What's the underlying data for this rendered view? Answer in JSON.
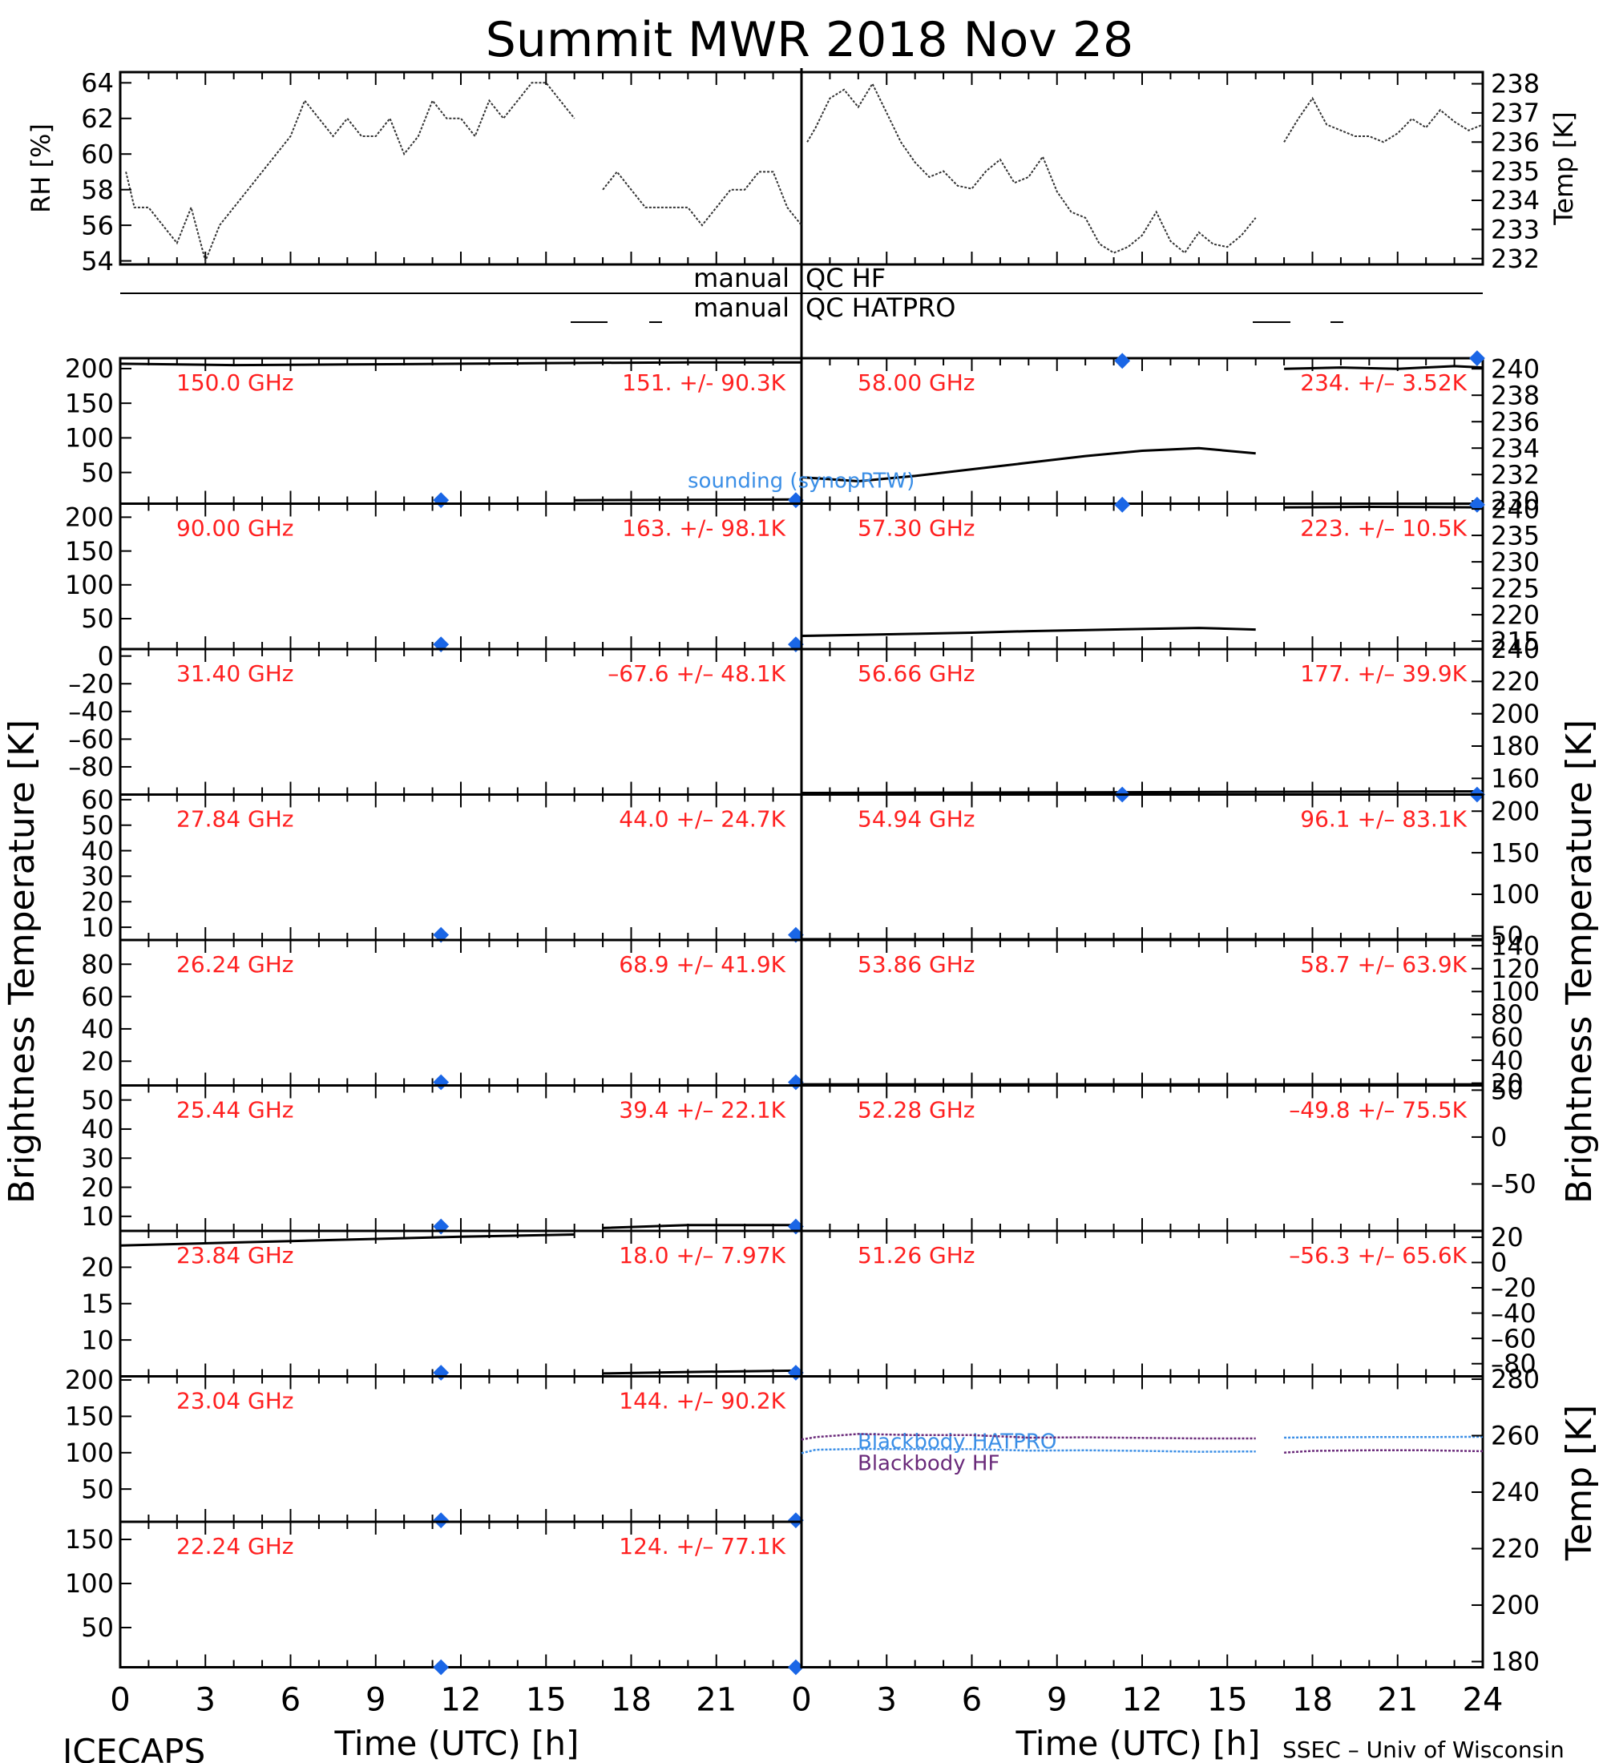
{
  "title": "Summit MWR 2018 Nov 28",
  "footer": {
    "left": "ICECAPS",
    "right": "SSEC – Univ of Wisconsin",
    "time_label_left": "Time (UTC) [h]",
    "time_label_right": "Time (UTC) [h]"
  },
  "axis_titles": {
    "rh": "RH [%]",
    "temp_top": "Temp [K]",
    "bt_left": "Brightness Temperature [K]",
    "bt_right": "Brightness Temperature [K]",
    "temp_bottom": "Temp [K]"
  },
  "qc": {
    "left_hf": "manual",
    "right_hf": "QC HF",
    "left_hat": "manual",
    "right_hat": "QC HATPRO"
  },
  "colors": {
    "axis": "#000000",
    "annotation": "#ff2020",
    "marker": "#1a66e6",
    "blackbody_hatpro": "#3a8ee6",
    "blackbody_hf": "#6a2a7a",
    "sounding": "#3a8ee6"
  },
  "chart_data": [
    {
      "type": "line",
      "panel": "met-rh",
      "ylabel": "RH [%]",
      "xlim": [
        0,
        24
      ],
      "ylim": [
        53.8,
        64.6
      ],
      "yticks": [
        54,
        56,
        58,
        60,
        62,
        64
      ],
      "x": [
        0.2,
        0.5,
        1,
        1.5,
        2,
        2.5,
        3,
        3.5,
        4,
        4.5,
        5,
        5.5,
        6,
        6.5,
        7,
        7.5,
        8,
        8.5,
        9,
        9.5,
        10,
        10.5,
        11,
        11.5,
        12,
        12.5,
        13,
        13.5,
        14,
        14.5,
        15,
        15.5,
        16
      ],
      "y": [
        59,
        57,
        57,
        56,
        55,
        57,
        54,
        56,
        57,
        58,
        59,
        60,
        61,
        63,
        62,
        61,
        62,
        61,
        61,
        62,
        60,
        61,
        63,
        62,
        62,
        61,
        63,
        62,
        63,
        64,
        64,
        63,
        62
      ],
      "x2": [
        17,
        17.5,
        18,
        18.5,
        19,
        19.5,
        20,
        20.5,
        21,
        21.5,
        22,
        22.5,
        23,
        23.5,
        24
      ],
      "y2": [
        58,
        59,
        58,
        57,
        57,
        57,
        57,
        56,
        57,
        58,
        58,
        59,
        59,
        57,
        56
      ]
    },
    {
      "type": "line",
      "panel": "met-temp",
      "ylabel": "Temp [K]",
      "xlim": [
        0,
        24
      ],
      "ylim": [
        231.8,
        238.4
      ],
      "yticks": [
        232,
        233,
        234,
        235,
        236,
        237,
        238
      ],
      "x": [
        0.2,
        0.5,
        1,
        1.5,
        2,
        2.5,
        3,
        3.5,
        4,
        4.5,
        5,
        5.5,
        6,
        6.5,
        7,
        7.5,
        8,
        8.5,
        9,
        9.5,
        10,
        10.5,
        11,
        11.5,
        12,
        12.5,
        13,
        13.5,
        14,
        14.5,
        15,
        15.5,
        16
      ],
      "y": [
        236,
        236.5,
        237.5,
        237.8,
        237.2,
        238,
        237,
        236,
        235.3,
        234.8,
        235,
        234.5,
        234.4,
        235,
        235.4,
        234.6,
        234.8,
        235.5,
        234.3,
        233.6,
        233.4,
        232.5,
        232.2,
        232.4,
        232.8,
        233.6,
        232.6,
        232.2,
        232.9,
        232.5,
        232.4,
        232.8,
        233.4
      ],
      "x2": [
        17,
        17.5,
        18,
        18.5,
        19,
        19.5,
        20,
        20.5,
        21,
        21.5,
        22,
        22.5,
        23,
        23.5,
        24
      ],
      "y2": [
        236,
        236.8,
        237.5,
        236.6,
        236.4,
        236.2,
        236.2,
        236,
        236.3,
        236.8,
        236.5,
        237.1,
        236.7,
        236.4,
        236.6
      ]
    },
    {
      "type": "scatter",
      "panel": "left",
      "channel": "150.0 GHz",
      "stat": "151. +/-  90.3K",
      "ylim": [
        5,
        215
      ],
      "yticks": [
        50,
        100,
        150,
        200
      ],
      "tick_labels": [
        "50",
        "100",
        "150",
        "200"
      ],
      "x": [
        0,
        4,
        8,
        12,
        15,
        20,
        24
      ],
      "y": [
        207,
        205,
        206,
        207,
        208,
        209,
        209
      ],
      "x2": [
        16,
        24
      ],
      "y2": [
        10,
        11
      ],
      "markers": [
        {
          "x": 11.3,
          "y": 10
        },
        {
          "x": 23.8,
          "y": 10
        }
      ]
    },
    {
      "type": "scatter",
      "panel": "left",
      "channel": "90.00 GHz",
      "stat": "163. +/-  98.1K",
      "ylim": [
        5,
        220
      ],
      "yticks": [
        0,
        50,
        100,
        150,
        200
      ],
      "tick_labels": [
        "0",
        "50",
        "100",
        "150",
        "200"
      ],
      "x": [],
      "y": [],
      "markers": [
        {
          "x": 11.3,
          "y": 12
        },
        {
          "x": 23.8,
          "y": 12
        }
      ]
    },
    {
      "type": "scatter",
      "panel": "left",
      "channel": "31.40 GHz",
      "stat": "–67.6 +/– 48.1K",
      "ylim": [
        -100,
        5
      ],
      "yticks": [
        -80,
        -60,
        -40,
        -20,
        0
      ],
      "tick_labels": [
        "–80",
        "–60",
        "–40",
        "–20",
        "0"
      ],
      "x": [],
      "y": [],
      "markers": []
    },
    {
      "type": "scatter",
      "panel": "left",
      "channel": "27.84 GHz",
      "stat": "44.0 +/– 24.7K",
      "ylim": [
        5,
        62
      ],
      "yticks": [
        10,
        20,
        30,
        40,
        50,
        60
      ],
      "tick_labels": [
        "10",
        "20",
        "30",
        "40",
        "50",
        "60"
      ],
      "x": [],
      "y": [],
      "markers": [
        {
          "x": 11.3,
          "y": 7
        },
        {
          "x": 23.8,
          "y": 7
        }
      ]
    },
    {
      "type": "scatter",
      "panel": "left",
      "channel": "26.24 GHz",
      "stat": "68.9 +/– 41.9K",
      "ylim": [
        5,
        95
      ],
      "yticks": [
        20,
        40,
        60,
        80
      ],
      "tick_labels": [
        "20",
        "40",
        "60",
        "80"
      ],
      "x": [],
      "y": [],
      "markers": [
        {
          "x": 11.3,
          "y": 7
        },
        {
          "x": 23.8,
          "y": 7
        }
      ]
    },
    {
      "type": "scatter",
      "panel": "left",
      "channel": "25.44 GHz",
      "stat": "39.4 +/– 22.1K",
      "ylim": [
        5,
        55
      ],
      "yticks": [
        10,
        20,
        30,
        40,
        50
      ],
      "tick_labels": [
        "10",
        "20",
        "30",
        "40",
        "50"
      ],
      "x": [
        17,
        20,
        24
      ],
      "y": [
        6,
        7,
        7
      ],
      "markers": [
        {
          "x": 11.3,
          "y": 6.5
        },
        {
          "x": 23.8,
          "y": 6.5
        }
      ]
    },
    {
      "type": "scatter",
      "panel": "left",
      "channel": "23.84 GHz",
      "stat": "18.0 +/– 7.97K",
      "ylim": [
        5,
        25
      ],
      "yticks": [
        10,
        15,
        20
      ],
      "tick_labels": [
        "10",
        "15",
        "20"
      ],
      "x": [
        0,
        4,
        8,
        12,
        16
      ],
      "y": [
        23,
        23.4,
        23.8,
        24.2,
        24.5
      ],
      "x2": [
        17,
        20,
        24
      ],
      "y2": [
        5.4,
        5.6,
        5.8
      ],
      "markers": [
        {
          "x": 11.3,
          "y": 5.5
        },
        {
          "x": 23.8,
          "y": 5.5
        }
      ]
    },
    {
      "type": "scatter",
      "panel": "left",
      "channel": "23.04 GHz",
      "stat": "144. +/– 90.2K",
      "ylim": [
        5,
        205
      ],
      "yticks": [
        50,
        100,
        150,
        200
      ],
      "tick_labels": [
        "50",
        "100",
        "150",
        "200"
      ],
      "x": [],
      "y": [],
      "markers": [
        {
          "x": 11.3,
          "y": 7
        },
        {
          "x": 23.8,
          "y": 7
        }
      ]
    },
    {
      "type": "scatter",
      "panel": "left",
      "channel": "22.24 GHz",
      "stat": "124. +/– 77.1K",
      "ylim": [
        5,
        170
      ],
      "yticks": [
        50,
        100,
        150
      ],
      "tick_labels": [
        "50",
        "100",
        "150"
      ],
      "x": [],
      "y": [],
      "markers": [
        {
          "x": 11.3,
          "y": 5
        },
        {
          "x": 23.8,
          "y": 5
        }
      ]
    },
    {
      "type": "scatter",
      "panel": "right",
      "channel": "58.00 GHz",
      "stat": "234. +/– 3.52K",
      "ylim": [
        229.8,
        240.8
      ],
      "yticks": [
        230,
        232,
        234,
        236,
        238,
        240
      ],
      "tick_labels": [
        "230",
        "232",
        "234",
        "236",
        "238",
        "240"
      ],
      "x": [
        0,
        2,
        4,
        6,
        8,
        10,
        12,
        14,
        16
      ],
      "y": [
        231.8,
        231.5,
        231.9,
        232.4,
        232.9,
        233.4,
        233.8,
        234,
        233.6
      ],
      "x2": [
        17,
        19,
        21,
        23,
        24
      ],
      "y2": [
        240,
        240.1,
        240,
        240.2,
        240.1
      ],
      "annotation": "sounding (synopRTW)",
      "markers": [
        {
          "x": 11.3,
          "y": 240.6
        },
        {
          "x": 23.8,
          "y": 240.8
        }
      ]
    },
    {
      "type": "scatter",
      "panel": "right",
      "channel": "57.30 GHz",
      "stat": "223. +/– 10.5K",
      "ylim": [
        213.5,
        241
      ],
      "yticks": [
        215,
        220,
        225,
        230,
        235,
        240
      ],
      "tick_labels": [
        "215",
        "220",
        "225",
        "230",
        "235",
        "240"
      ],
      "x": [
        0,
        2,
        4,
        6,
        8,
        10,
        12,
        14,
        16
      ],
      "y": [
        216,
        216.2,
        216.4,
        216.6,
        216.9,
        217.1,
        217.3,
        217.5,
        217.2
      ],
      "x2": [
        17,
        20,
        24
      ],
      "y2": [
        240.3,
        240.4,
        240.3
      ],
      "markers": [
        {
          "x": 11.3,
          "y": 240.8
        },
        {
          "x": 23.8,
          "y": 240.8
        }
      ]
    },
    {
      "type": "scatter",
      "panel": "right",
      "channel": "56.66 GHz",
      "stat": "177. +/– 39.9K",
      "ylim": [
        150,
        240
      ],
      "yticks": [
        160,
        180,
        200,
        220,
        240
      ],
      "tick_labels": [
        "160",
        "180",
        "200",
        "220",
        "240"
      ],
      "x": [
        0,
        24
      ],
      "y": [
        151,
        152
      ],
      "markers": [
        {
          "x": 11.3,
          "y": 150
        },
        {
          "x": 23.8,
          "y": 150
        }
      ]
    },
    {
      "type": "scatter",
      "panel": "right",
      "channel": "54.94 GHz",
      "stat": "96.1 +/– 83.1K",
      "ylim": [
        45,
        220
      ],
      "yticks": [
        50,
        100,
        150,
        200
      ],
      "tick_labels": [
        "50",
        "100",
        "150",
        "200"
      ],
      "x": [
        0,
        24
      ],
      "y": [
        46,
        46
      ],
      "markers": []
    },
    {
      "type": "scatter",
      "panel": "right",
      "channel": "53.86 GHz",
      "stat": "58.7 +/– 63.9K",
      "ylim": [
        18,
        145
      ],
      "yticks": [
        20,
        40,
        60,
        80,
        100,
        120,
        140
      ],
      "tick_labels": [
        "20",
        "40",
        "60",
        "80",
        "100",
        "120",
        "140"
      ],
      "x": [
        0,
        24
      ],
      "y": [
        19,
        19
      ],
      "markers": []
    },
    {
      "type": "scatter",
      "panel": "right",
      "channel": "52.28 GHz",
      "stat": "–49.8 +/– 75.5K",
      "ylim": [
        -100,
        55
      ],
      "yticks": [
        -50,
        0,
        50
      ],
      "tick_labels": [
        "–50",
        "0",
        "50"
      ],
      "x": [],
      "y": [],
      "markers": []
    },
    {
      "type": "scatter",
      "panel": "right",
      "channel": "51.26 GHz",
      "stat": "–56.3 +/– 65.6K",
      "ylim": [
        -90,
        25
      ],
      "yticks": [
        -80,
        -60,
        -40,
        -20,
        0,
        20
      ],
      "tick_labels": [
        "–80",
        "–60",
        "–40",
        "–20",
        "0",
        "20"
      ],
      "x": [],
      "y": [],
      "markers": []
    },
    {
      "type": "line",
      "panel": "blackbody",
      "ylabel": "Temp [K]",
      "xlim": [
        0,
        24
      ],
      "ylim": [
        178,
        281
      ],
      "yticks": [
        180,
        200,
        220,
        240,
        260,
        280
      ],
      "xlabel": "Time (UTC) [h]",
      "xticks": [
        0,
        3,
        6,
        9,
        12,
        15,
        18,
        21,
        24
      ],
      "series": [
        {
          "name": "Blackbody HATPRO",
          "color": "#3a8ee6",
          "x": [
            0,
            0.5,
            2,
            4,
            6,
            8,
            10,
            12,
            14,
            16
          ],
          "y": [
            253.8,
            255,
            255.3,
            255.2,
            255.2,
            254.7,
            254.8,
            254.6,
            254.3,
            254.4
          ],
          "x2": [
            17,
            18,
            20,
            22,
            24
          ],
          "y2": [
            259.3,
            259.4,
            259.5,
            259.5,
            259.6
          ]
        },
        {
          "name": "Blackbody HF",
          "color": "#6a2a7a",
          "x": [
            0,
            0.5,
            2,
            4,
            6,
            8,
            10,
            12,
            14,
            16
          ],
          "y": [
            258.6,
            259.5,
            260.6,
            260.2,
            260.2,
            259.3,
            259.4,
            259.2,
            259,
            259
          ],
          "x2": [
            17,
            18,
            20,
            22,
            24
          ],
          "y2": [
            254,
            254.6,
            254.8,
            254.8,
            254.5
          ]
        }
      ]
    }
  ]
}
